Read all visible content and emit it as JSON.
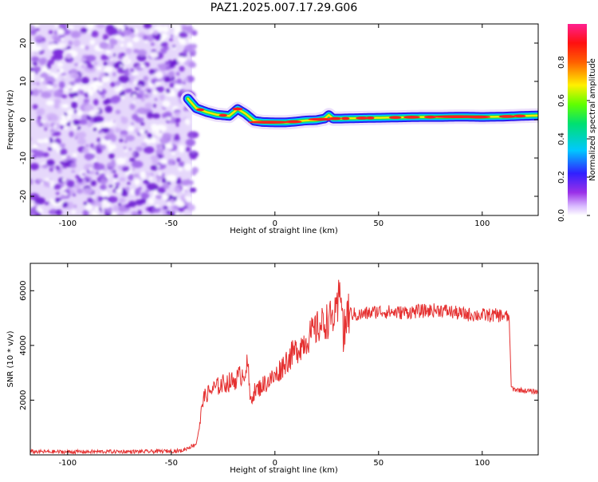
{
  "title": "PAZ1.2025.007.17.29.G06",
  "colors": {
    "snr_line": "#e53030",
    "noise": "#8a2be2",
    "axis": "#000000",
    "background": "#ffffff"
  },
  "colorbar": {
    "label": "Normalized spectral amplitude",
    "ticks": [
      "0.0",
      "0.2",
      "0.4",
      "0.6",
      "0.8"
    ],
    "tick_values": [
      0.0,
      0.2,
      0.4,
      0.6,
      0.8
    ],
    "range": [
      0,
      1
    ],
    "colormap": "rainbow (magenta-blue-cyan-green-yellow-red-pink)"
  },
  "chart_data": [
    {
      "type": "heatmap",
      "name": "spectrogram",
      "xlabel": "Height of straight line (km)",
      "ylabel": "Frequency (Hz)",
      "xlim": [
        -118,
        127
      ],
      "ylim": [
        -25,
        25
      ],
      "x_ticks": [
        -100,
        -50,
        0,
        50,
        100
      ],
      "x_tick_labels": [
        "-100",
        "-50",
        "0",
        "50",
        "100"
      ],
      "y_ticks": [
        -20,
        -10,
        0,
        10,
        20
      ],
      "y_tick_labels": [
        "-20",
        "-10",
        "0",
        "10",
        "20"
      ],
      "noise_region_x": [
        -118,
        -40
      ],
      "signal_ridge": {
        "x": [
          -42,
          -38,
          -33,
          -28,
          -22,
          -18,
          -14,
          -10,
          -6,
          0,
          5,
          10,
          15,
          20,
          24,
          26,
          28,
          32,
          40,
          50,
          60,
          70,
          80,
          90,
          100,
          110,
          120,
          127
        ],
        "freq": [
          5.5,
          3.0,
          2.0,
          1.3,
          1.0,
          2.8,
          1.5,
          -0.3,
          -0.6,
          -0.7,
          -0.7,
          -0.5,
          -0.2,
          -0.1,
          0.3,
          1.2,
          0.3,
          0.3,
          0.4,
          0.5,
          0.6,
          0.7,
          0.7,
          0.8,
          0.7,
          0.8,
          1.0,
          1.1
        ]
      }
    },
    {
      "type": "line",
      "name": "snr",
      "xlabel": "Height of straight line (km)",
      "ylabel": "SNR (10 * v/v)",
      "xlim": [
        -118,
        127
      ],
      "ylim": [
        0,
        7000
      ],
      "x_ticks": [
        -100,
        -50,
        0,
        50,
        100
      ],
      "x_tick_labels": [
        "-100",
        "-50",
        "0",
        "50",
        "100"
      ],
      "y_ticks": [
        2000,
        4000,
        6000
      ],
      "y_tick_labels": [
        "2000",
        "4000",
        "6000"
      ],
      "series": [
        {
          "x": [
            -118,
            -100,
            -80,
            -60,
            -45,
            -38,
            -36,
            -35,
            -33,
            -30,
            -25,
            -20,
            -15,
            -13,
            -12,
            -10,
            -5,
            0,
            5,
            10,
            15,
            20,
            25,
            30,
            32,
            33,
            35,
            40,
            50,
            60,
            70,
            80,
            90,
            100,
            110,
            113,
            114,
            115,
            120,
            127
          ],
          "y": [
            120,
            110,
            120,
            120,
            150,
            400,
            1200,
            2000,
            2200,
            2400,
            2600,
            2700,
            3000,
            3300,
            2000,
            2300,
            2600,
            2850,
            3400,
            3800,
            4200,
            4600,
            4900,
            5100,
            6400,
            4200,
            5200,
            5100,
            5250,
            5200,
            5250,
            5300,
            5150,
            5100,
            5100,
            5000,
            2500,
            2400,
            2350,
            2300
          ]
        }
      ]
    }
  ]
}
